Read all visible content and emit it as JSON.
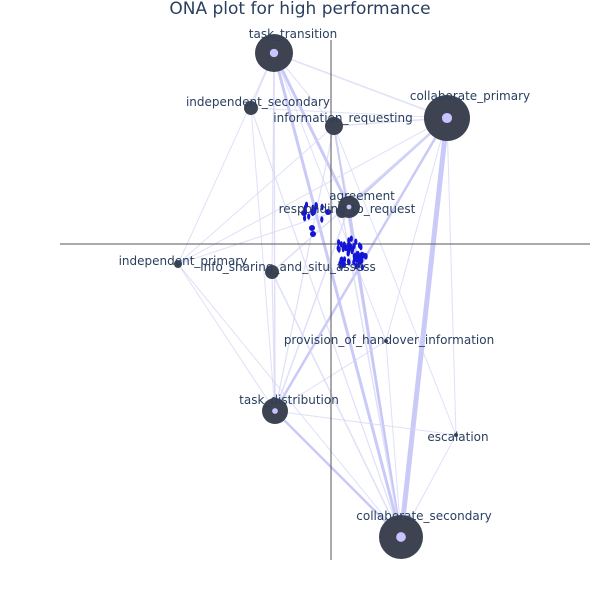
{
  "title": "ONA plot for high performance",
  "colors": {
    "node": "#3d4350",
    "node_center": "#c9c4ff",
    "edge": "#d6d6f5",
    "edge_strong": "#c4c4f7",
    "axis": "#555555",
    "centroid_points": "#1414d6"
  },
  "nodes": [
    {
      "id": "task_transition",
      "label": "task_transition"
    },
    {
      "id": "independent_secondary",
      "label": "independent_secondary"
    },
    {
      "id": "information_requesting",
      "label": "information_requesting"
    },
    {
      "id": "collaborate_primary",
      "label": "collaborate_primary"
    },
    {
      "id": "agreement",
      "label": "agreement"
    },
    {
      "id": "responding_to_request",
      "label": "responding_to_request"
    },
    {
      "id": "independent_primary",
      "label": "independent_primary"
    },
    {
      "id": "info_sharing_and_situ_assess",
      "label": "info_sharing_and_situ_assess"
    },
    {
      "id": "provision_of_handover_information",
      "label": "provision_of_handover_information"
    },
    {
      "id": "task_distribution",
      "label": "task_distribution"
    },
    {
      "id": "escalation",
      "label": "escalation"
    },
    {
      "id": "collaborate_secondary",
      "label": "collaborate_secondary"
    }
  ]
}
